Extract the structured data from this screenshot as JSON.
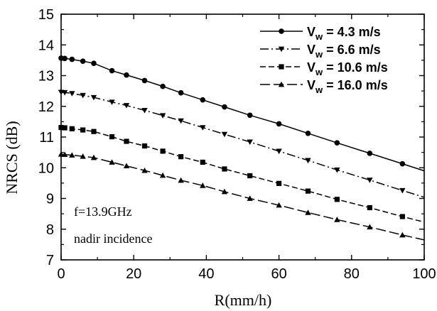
{
  "chart_data": {
    "type": "line",
    "title": "",
    "xlabel": "R(mm/h)",
    "ylabel": "NRCS (dB)",
    "xlim": [
      0,
      100
    ],
    "ylim": [
      7,
      15
    ],
    "xticks": [
      0,
      20,
      40,
      60,
      80,
      100
    ],
    "yticks": [
      7,
      8,
      9,
      10,
      11,
      12,
      13,
      14,
      15
    ],
    "grid": false,
    "legend_position": "top-right",
    "annotations": [
      "f=13.9GHz",
      "nadir incidence"
    ],
    "series": [
      {
        "name_prefix": "V",
        "name_subscript": "w",
        "name_suffix": " = 4.3 m/s",
        "line_style": "solid",
        "marker": "circle",
        "x": [
          0,
          1,
          3,
          6,
          9,
          14,
          18,
          23,
          28,
          33,
          39,
          45,
          52,
          60,
          68,
          76,
          85,
          94,
          100
        ],
        "y": [
          13.57,
          13.56,
          13.53,
          13.47,
          13.4,
          13.16,
          13.02,
          12.84,
          12.65,
          12.44,
          12.21,
          11.98,
          11.71,
          11.43,
          11.12,
          10.81,
          10.47,
          10.13,
          9.9
        ]
      },
      {
        "name_prefix": "V",
        "name_subscript": "w",
        "name_suffix": " = 6.6 m/s",
        "line_style": "dashdot",
        "marker": "triangle-down",
        "x": [
          0,
          1,
          3,
          6,
          9,
          14,
          18,
          23,
          28,
          33,
          39,
          45,
          52,
          60,
          68,
          76,
          85,
          94,
          100
        ],
        "y": [
          12.46,
          12.45,
          12.42,
          12.36,
          12.29,
          12.14,
          12.03,
          11.87,
          11.7,
          11.53,
          11.31,
          11.09,
          10.84,
          10.54,
          10.24,
          9.93,
          9.6,
          9.26,
          9.04
        ]
      },
      {
        "name_prefix": "V",
        "name_subscript": "w",
        "name_suffix": " = 10.6 m/s",
        "line_style": "dashed",
        "marker": "square",
        "x": [
          0,
          1,
          3,
          6,
          9,
          14,
          18,
          23,
          28,
          33,
          39,
          45,
          52,
          60,
          68,
          76,
          85,
          94,
          100
        ],
        "y": [
          11.31,
          11.3,
          11.27,
          11.23,
          11.18,
          11.01,
          10.86,
          10.71,
          10.54,
          10.36,
          10.18,
          9.96,
          9.74,
          9.49,
          9.24,
          8.97,
          8.7,
          8.41,
          8.23
        ]
      },
      {
        "name_prefix": "V",
        "name_subscript": "w",
        "name_suffix": " = 16.0 m/s",
        "line_style": "longdash",
        "marker": "triangle-up",
        "x": [
          0,
          1,
          3,
          6,
          9,
          14,
          18,
          23,
          28,
          33,
          39,
          45,
          52,
          60,
          68,
          76,
          85,
          94,
          100
        ],
        "y": [
          10.44,
          10.43,
          10.41,
          10.37,
          10.33,
          10.18,
          10.06,
          9.91,
          9.75,
          9.59,
          9.42,
          9.22,
          9.0,
          8.78,
          8.54,
          8.31,
          8.07,
          7.81,
          7.65
        ]
      }
    ]
  }
}
